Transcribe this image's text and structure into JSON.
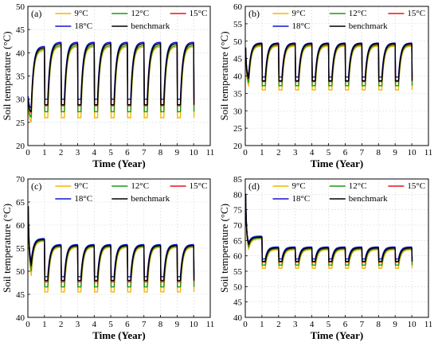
{
  "figure": {
    "x_axis_label": "Time (Year)",
    "y_axis_label": "Soil temperature (°C)"
  },
  "legend": {
    "entries": [
      {
        "name": "9°C",
        "color": "#f7b500"
      },
      {
        "name": "12°C",
        "color": "#1a9a1a"
      },
      {
        "name": "15°C",
        "color": "#e8141c"
      },
      {
        "name": "18°C",
        "color": "#1414d0"
      },
      {
        "name": "benchmark",
        "color": "#000000"
      }
    ]
  },
  "chart_data": [
    {
      "type": "line",
      "panel_label": "(a)",
      "xlim": [
        0,
        11
      ],
      "ylim": [
        20,
        50
      ],
      "yticks": [
        20,
        25,
        30,
        35,
        40,
        45,
        50
      ],
      "xticks": [
        0,
        1,
        2,
        3,
        4,
        5,
        6,
        7,
        8,
        9,
        10,
        11
      ],
      "grid": true,
      "legend_position": "top",
      "xlabel": "Time (Year)",
      "ylabel": "Soil temperature (°C)",
      "series": [
        {
          "name": "9°C",
          "color": "#f7b500",
          "initial": 29,
          "first_low": 25,
          "low": 26,
          "high": 41.3,
          "first_high": 40.5
        },
        {
          "name": "12°C",
          "color": "#1a9a1a",
          "initial": 29.5,
          "first_low": 26,
          "low": 27.3,
          "high": 41.6,
          "first_high": 40.8
        },
        {
          "name": "15°C",
          "color": "#e8141c",
          "initial": 30,
          "first_low": 27,
          "low": 28.6,
          "high": 42,
          "first_high": 41.1
        },
        {
          "name": "18°C",
          "color": "#1414d0",
          "initial": 30.5,
          "first_low": 28,
          "low": 30,
          "high": 42.3,
          "first_high": 41.4
        },
        {
          "name": "benchmark",
          "color": "#000000",
          "initial": 30,
          "first_low": 27.2,
          "low": 28.8,
          "high": 42,
          "first_high": 41.1
        }
      ]
    },
    {
      "type": "line",
      "panel_label": "(b)",
      "xlim": [
        0,
        11
      ],
      "ylim": [
        20,
        60
      ],
      "yticks": [
        20,
        25,
        30,
        35,
        40,
        45,
        50,
        55,
        60
      ],
      "xticks": [
        0,
        1,
        2,
        3,
        4,
        5,
        6,
        7,
        8,
        9,
        10,
        11
      ],
      "grid": true,
      "legend_position": "top",
      "xlabel": "Time (Year)",
      "ylabel": "Soil temperature (°C)",
      "series": [
        {
          "name": "9°C",
          "color": "#f7b500",
          "initial": 48,
          "first_low": 37,
          "low": 36,
          "high": 48.6,
          "first_high": 48.6
        },
        {
          "name": "12°C",
          "color": "#1a9a1a",
          "initial": 48,
          "first_low": 38,
          "low": 37.2,
          "high": 48.9,
          "first_high": 48.9
        },
        {
          "name": "15°C",
          "color": "#e8141c",
          "initial": 48,
          "first_low": 39,
          "low": 38.4,
          "high": 49.2,
          "first_high": 49.2
        },
        {
          "name": "18°C",
          "color": "#1414d0",
          "initial": 48,
          "first_low": 40,
          "low": 39.7,
          "high": 49.5,
          "first_high": 49.5
        },
        {
          "name": "benchmark",
          "color": "#000000",
          "initial": 48,
          "first_low": 39.2,
          "low": 38.6,
          "high": 49.3,
          "first_high": 49.3
        }
      ]
    },
    {
      "type": "line",
      "panel_label": "(c)",
      "xlim": [
        0,
        11
      ],
      "ylim": [
        40,
        70
      ],
      "yticks": [
        40,
        45,
        50,
        55,
        60,
        65,
        70
      ],
      "xticks": [
        0,
        1,
        2,
        3,
        4,
        5,
        6,
        7,
        8,
        9,
        10,
        11
      ],
      "grid": true,
      "legend_position": "top",
      "xlabel": "Time (Year)",
      "ylabel": "Soil temperature (°C)",
      "series": [
        {
          "name": "9°C",
          "color": "#f7b500",
          "initial": 64,
          "first_low": 49,
          "low": 45.5,
          "high": 55.2,
          "first_high": 56.5
        },
        {
          "name": "12°C",
          "color": "#1a9a1a",
          "initial": 64,
          "first_low": 50,
          "low": 46.6,
          "high": 55.4,
          "first_high": 56.7
        },
        {
          "name": "15°C",
          "color": "#e8141c",
          "initial": 64,
          "first_low": 51,
          "low": 47.7,
          "high": 55.6,
          "first_high": 56.9
        },
        {
          "name": "18°C",
          "color": "#1414d0",
          "initial": 64,
          "first_low": 52,
          "low": 48.8,
          "high": 55.8,
          "first_high": 57.1
        },
        {
          "name": "benchmark",
          "color": "#000000",
          "initial": 64,
          "first_low": 51.2,
          "low": 48,
          "high": 55.6,
          "first_high": 56.9
        }
      ]
    },
    {
      "type": "line",
      "panel_label": "(d)",
      "xlim": [
        0,
        11
      ],
      "ylim": [
        40,
        85
      ],
      "yticks": [
        40,
        45,
        50,
        55,
        60,
        65,
        70,
        75,
        80,
        85
      ],
      "xticks": [
        0,
        1,
        2,
        3,
        4,
        5,
        6,
        7,
        8,
        9,
        10,
        11
      ],
      "grid": true,
      "legend_position": "top",
      "xlabel": "Time (Year)",
      "ylabel": "Soil temperature (°C)",
      "series": [
        {
          "name": "9°C",
          "color": "#f7b500",
          "initial": 80,
          "first_low": 62,
          "low": 56,
          "high": 62,
          "first_high": 65.5
        },
        {
          "name": "12°C",
          "color": "#1a9a1a",
          "initial": 80,
          "first_low": 62.7,
          "low": 57,
          "high": 62.3,
          "first_high": 65.8
        },
        {
          "name": "15°C",
          "color": "#e8141c",
          "initial": 80,
          "first_low": 63.4,
          "low": 58,
          "high": 62.6,
          "first_high": 66.1
        },
        {
          "name": "18°C",
          "color": "#1414d0",
          "initial": 80,
          "first_low": 64.1,
          "low": 59,
          "high": 62.9,
          "first_high": 66.4
        },
        {
          "name": "benchmark",
          "color": "#000000",
          "initial": 80,
          "first_low": 63.6,
          "low": 58.2,
          "high": 62.6,
          "first_high": 66.1
        }
      ]
    }
  ]
}
